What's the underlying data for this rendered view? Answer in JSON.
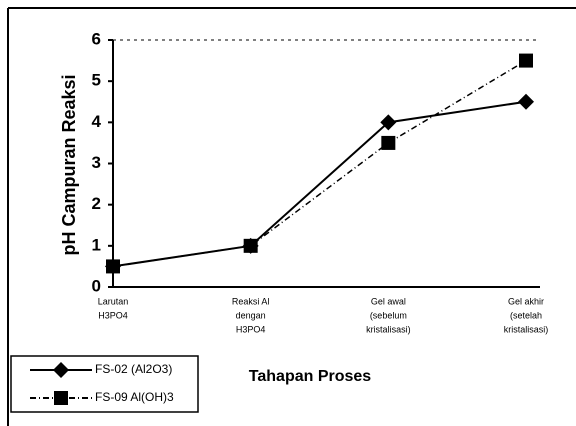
{
  "chart_data": {
    "type": "line",
    "y_label": "pH Campuran Reaksi",
    "x_label": "Tahapan Proses",
    "categories": [
      [
        "Larutan",
        "H3PO4"
      ],
      [
        "Reaksi Al",
        "dengan",
        "H3PO4"
      ],
      [
        "Gel awal",
        "(sebelum",
        "kristalisasi)"
      ],
      [
        "Gel akhir",
        "(setelah",
        "kristalisasi)"
      ]
    ],
    "series": [
      {
        "name": "FS-02 (Al2O3)",
        "color": "#000000",
        "marker": "diamond",
        "dash": "solid",
        "values": [
          0.5,
          1,
          4,
          4.5
        ]
      },
      {
        "name": "FS-09 Al(OH)3",
        "color": "#000000",
        "marker": "square",
        "dash": "dashdot",
        "values": [
          0.5,
          1,
          3.5,
          5.5
        ]
      }
    ],
    "ylim": [
      0,
      6
    ],
    "yticks": [
      0,
      1,
      2,
      3,
      4,
      5,
      6
    ],
    "grid": false,
    "legend": "bottom-left"
  }
}
